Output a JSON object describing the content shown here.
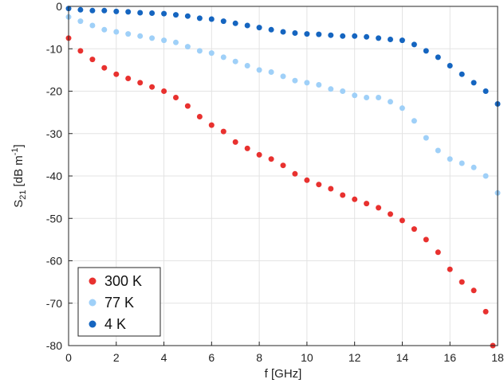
{
  "chart_data": {
    "type": "scatter",
    "xlabel": "f [GHz]",
    "ylabel_parts": {
      "base": "S",
      "sub": "21",
      "unit": "[dB m",
      "sup": "-1",
      "close": "]"
    },
    "xlim": [
      0,
      18
    ],
    "ylim": [
      -80,
      0
    ],
    "x_ticks": [
      0,
      2,
      4,
      6,
      8,
      10,
      12,
      14,
      16,
      18
    ],
    "y_ticks": [
      0,
      -10,
      -20,
      -30,
      -40,
      -50,
      -60,
      -70,
      -80
    ],
    "grid": true,
    "legend_position": "bottom-left",
    "series": [
      {
        "name": "300 K",
        "color": "#e8312f",
        "x": [
          0,
          0.5,
          1,
          1.5,
          2,
          2.5,
          3,
          3.5,
          4,
          4.5,
          5,
          5.5,
          6,
          6.5,
          7,
          7.5,
          8,
          8.5,
          9,
          9.5,
          10,
          10.5,
          11,
          11.5,
          12,
          12.5,
          13,
          13.5,
          14,
          14.5,
          15,
          15.5,
          16,
          16.5,
          17,
          17.5,
          17.8
        ],
        "y": [
          -7.5,
          -10.5,
          -12.5,
          -14.5,
          -16,
          -17,
          -18,
          -19,
          -20,
          -21.5,
          -23.5,
          -26,
          -28,
          -29.5,
          -32,
          -33.5,
          -35,
          -36,
          -37.5,
          -39.5,
          -41,
          -42,
          -43,
          -44.5,
          -45.5,
          -46.5,
          -47.5,
          -49,
          -50.5,
          -52.5,
          -55,
          -58,
          -62,
          -65,
          -67,
          -72,
          -80
        ]
      },
      {
        "name": "77 K",
        "color": "#9fd0f8",
        "x": [
          0,
          0.5,
          1,
          1.5,
          2,
          2.5,
          3,
          3.5,
          4,
          4.5,
          5,
          5.5,
          6,
          6.5,
          7,
          7.5,
          8,
          8.5,
          9,
          9.5,
          10,
          10.5,
          11,
          11.5,
          12,
          12.5,
          13,
          13.5,
          14,
          14.5,
          15,
          15.5,
          16,
          16.5,
          17,
          17.5,
          18
        ],
        "y": [
          -2.5,
          -3.5,
          -4.5,
          -5.5,
          -6,
          -6.5,
          -7,
          -7.5,
          -8,
          -8.5,
          -9.5,
          -10.5,
          -11,
          -12,
          -13,
          -14,
          -15,
          -15.5,
          -16.5,
          -17.5,
          -18,
          -18.5,
          -19.5,
          -20,
          -21,
          -21.5,
          -21.5,
          -22.5,
          -24,
          -27,
          -31,
          -34,
          -36,
          -37,
          -38,
          -40,
          -44
        ]
      },
      {
        "name": "4 K",
        "color": "#1565c0",
        "x": [
          0,
          0.5,
          1,
          1.5,
          2,
          2.5,
          3,
          3.5,
          4,
          4.5,
          5,
          5.5,
          6,
          6.5,
          7,
          7.5,
          8,
          8.5,
          9,
          9.5,
          10,
          10.5,
          11,
          11.5,
          12,
          12.5,
          13,
          13.5,
          14,
          14.5,
          15,
          15.5,
          16,
          16.5,
          17,
          17.5,
          18
        ],
        "y": [
          -0.5,
          -0.8,
          -1,
          -1,
          -1.2,
          -1.3,
          -1.5,
          -1.6,
          -1.7,
          -2,
          -2.3,
          -2.8,
          -3,
          -3.5,
          -4,
          -4.5,
          -5,
          -5.5,
          -6,
          -6.3,
          -6.5,
          -6.6,
          -6.8,
          -7,
          -7,
          -7.2,
          -7.5,
          -7.8,
          -8,
          -9,
          -10.5,
          -12,
          -14,
          -16,
          -18,
          -20,
          -23
        ]
      }
    ]
  }
}
